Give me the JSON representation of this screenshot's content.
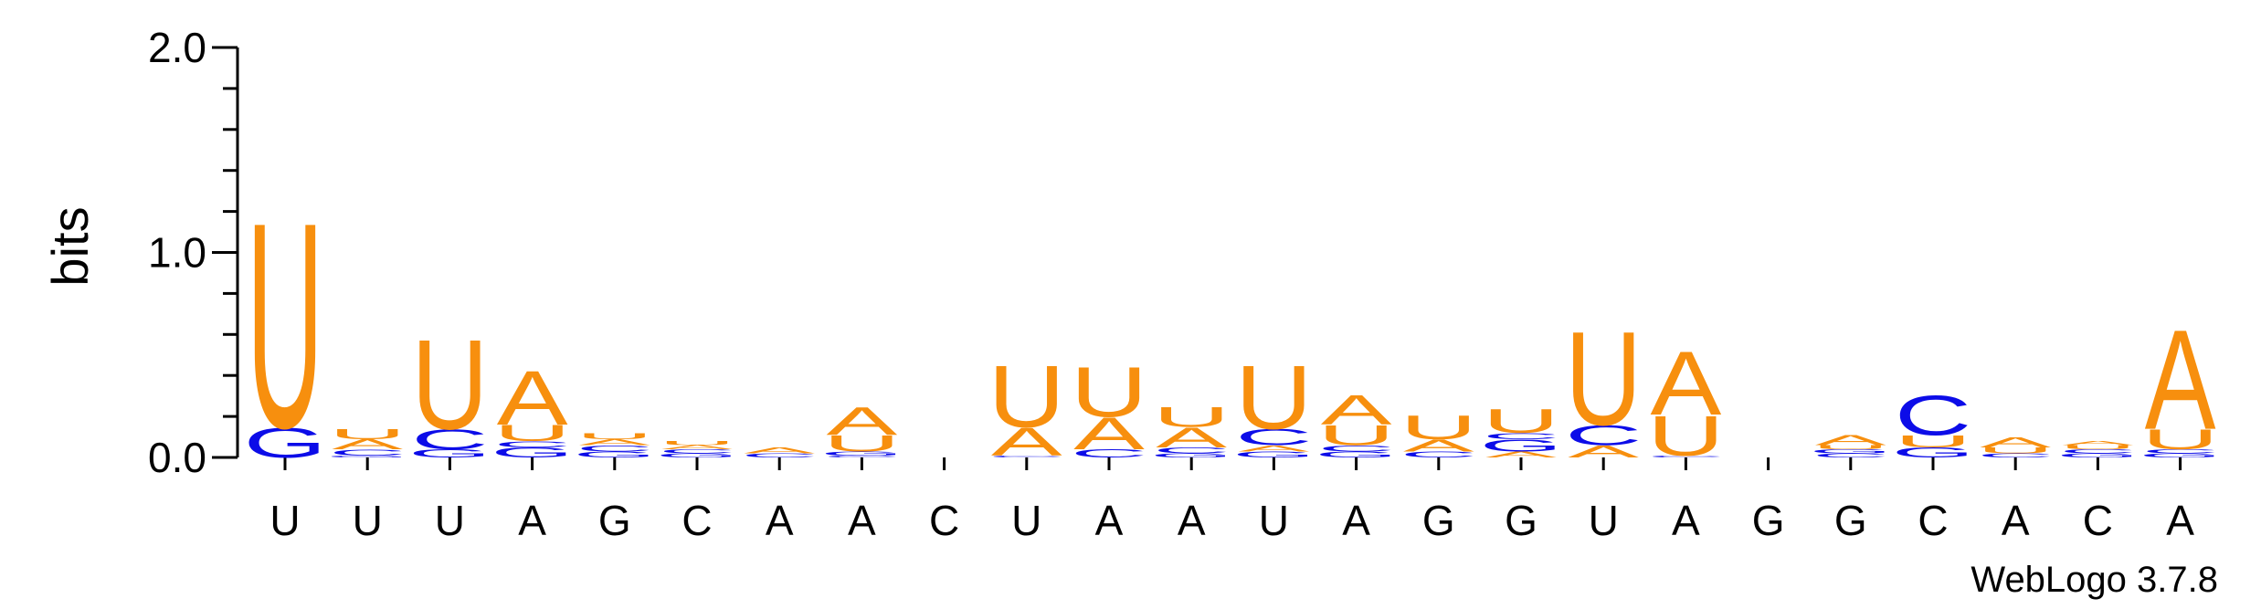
{
  "chart_data": {
    "type": "sequence-logo",
    "ylabel": "bits",
    "ylim": [
      0,
      2
    ],
    "yticks": [
      "0.0",
      "1.0",
      "2.0"
    ],
    "credit": "WebLogo 3.7.8",
    "colors": {
      "U": "#f78f0e",
      "A": "#f78f0e",
      "C": "#0c0ce8",
      "G": "#0c0ce8"
    },
    "positions": [
      {
        "label": "U",
        "stack": [
          {
            "letter": "G",
            "bits": 0.15
          },
          {
            "letter": "U",
            "bits": 1.03
          }
        ]
      },
      {
        "label": "U",
        "stack": [
          {
            "letter": "G",
            "bits": 0.01
          },
          {
            "letter": "C",
            "bits": 0.03
          },
          {
            "letter": "A",
            "bits": 0.05
          },
          {
            "letter": "U",
            "bits": 0.05
          }
        ]
      },
      {
        "label": "U",
        "stack": [
          {
            "letter": "G",
            "bits": 0.04
          },
          {
            "letter": "C",
            "bits": 0.1
          },
          {
            "letter": "U",
            "bits": 0.45
          }
        ]
      },
      {
        "label": "A",
        "stack": [
          {
            "letter": "G",
            "bits": 0.05
          },
          {
            "letter": "C",
            "bits": 0.03
          },
          {
            "letter": "U",
            "bits": 0.08
          },
          {
            "letter": "A",
            "bits": 0.27
          }
        ]
      },
      {
        "label": "G",
        "stack": [
          {
            "letter": "G",
            "bits": 0.03
          },
          {
            "letter": "C",
            "bits": 0.03
          },
          {
            "letter": "A",
            "bits": 0.03
          },
          {
            "letter": "U",
            "bits": 0.03
          }
        ]
      },
      {
        "label": "C",
        "stack": [
          {
            "letter": "G",
            "bits": 0.02
          },
          {
            "letter": "C",
            "bits": 0.02
          },
          {
            "letter": "A",
            "bits": 0.02
          },
          {
            "letter": "U",
            "bits": 0.02
          }
        ]
      },
      {
        "label": "A",
        "stack": [
          {
            "letter": "C",
            "bits": 0.02
          },
          {
            "letter": "A",
            "bits": 0.03
          }
        ]
      },
      {
        "label": "A",
        "stack": [
          {
            "letter": "C",
            "bits": 0.01
          },
          {
            "letter": "G",
            "bits": 0.02
          },
          {
            "letter": "U",
            "bits": 0.08
          },
          {
            "letter": "A",
            "bits": 0.14
          }
        ]
      },
      {
        "label": "C",
        "stack": []
      },
      {
        "label": "U",
        "stack": [
          {
            "letter": "C",
            "bits": 0.01
          },
          {
            "letter": "A",
            "bits": 0.14
          },
          {
            "letter": "U",
            "bits": 0.31
          }
        ]
      },
      {
        "label": "A",
        "stack": [
          {
            "letter": "C",
            "bits": 0.04
          },
          {
            "letter": "A",
            "bits": 0.16
          },
          {
            "letter": "U",
            "bits": 0.25
          }
        ]
      },
      {
        "label": "A",
        "stack": [
          {
            "letter": "G",
            "bits": 0.02
          },
          {
            "letter": "C",
            "bits": 0.03
          },
          {
            "letter": "A",
            "bits": 0.1
          },
          {
            "letter": "U",
            "bits": 0.1
          }
        ]
      },
      {
        "label": "U",
        "stack": [
          {
            "letter": "G",
            "bits": 0.03
          },
          {
            "letter": "A",
            "bits": 0.03
          },
          {
            "letter": "C",
            "bits": 0.08
          },
          {
            "letter": "U",
            "bits": 0.32
          }
        ]
      },
      {
        "label": "A",
        "stack": [
          {
            "letter": "G",
            "bits": 0.03
          },
          {
            "letter": "C",
            "bits": 0.03
          },
          {
            "letter": "U",
            "bits": 0.1
          },
          {
            "letter": "A",
            "bits": 0.15
          }
        ]
      },
      {
        "label": "G",
        "stack": [
          {
            "letter": "C",
            "bits": 0.03
          },
          {
            "letter": "A",
            "bits": 0.06
          },
          {
            "letter": "U",
            "bits": 0.12
          }
        ]
      },
      {
        "label": "G",
        "stack": [
          {
            "letter": "A",
            "bits": 0.03
          },
          {
            "letter": "G",
            "bits": 0.06
          },
          {
            "letter": "C",
            "bits": 0.03
          },
          {
            "letter": "U",
            "bits": 0.12
          }
        ]
      },
      {
        "label": "U",
        "stack": [
          {
            "letter": "A",
            "bits": 0.06
          },
          {
            "letter": "C",
            "bits": 0.1
          },
          {
            "letter": "U",
            "bits": 0.47
          }
        ]
      },
      {
        "label": "A",
        "stack": [
          {
            "letter": "C",
            "bits": 0.01
          },
          {
            "letter": "U",
            "bits": 0.2
          },
          {
            "letter": "A",
            "bits": 0.32
          }
        ]
      },
      {
        "label": "G",
        "stack": []
      },
      {
        "label": "G",
        "stack": [
          {
            "letter": "C",
            "bits": 0.02
          },
          {
            "letter": "G",
            "bits": 0.02
          },
          {
            "letter": "U",
            "bits": 0.02
          },
          {
            "letter": "A",
            "bits": 0.05
          }
        ]
      },
      {
        "label": "C",
        "stack": [
          {
            "letter": "G",
            "bits": 0.05
          },
          {
            "letter": "U",
            "bits": 0.06
          },
          {
            "letter": "C",
            "bits": 0.2
          }
        ]
      },
      {
        "label": "A",
        "stack": [
          {
            "letter": "C",
            "bits": 0.02
          },
          {
            "letter": "U",
            "bits": 0.03
          },
          {
            "letter": "A",
            "bits": 0.05
          }
        ]
      },
      {
        "label": "C",
        "stack": [
          {
            "letter": "G",
            "bits": 0.02
          },
          {
            "letter": "C",
            "bits": 0.02
          },
          {
            "letter": "U",
            "bits": 0.02
          },
          {
            "letter": "A",
            "bits": 0.02
          }
        ]
      },
      {
        "label": "A",
        "stack": [
          {
            "letter": "G",
            "bits": 0.02
          },
          {
            "letter": "C",
            "bits": 0.02
          },
          {
            "letter": "U",
            "bits": 0.1
          },
          {
            "letter": "A",
            "bits": 0.5
          }
        ]
      }
    ]
  }
}
